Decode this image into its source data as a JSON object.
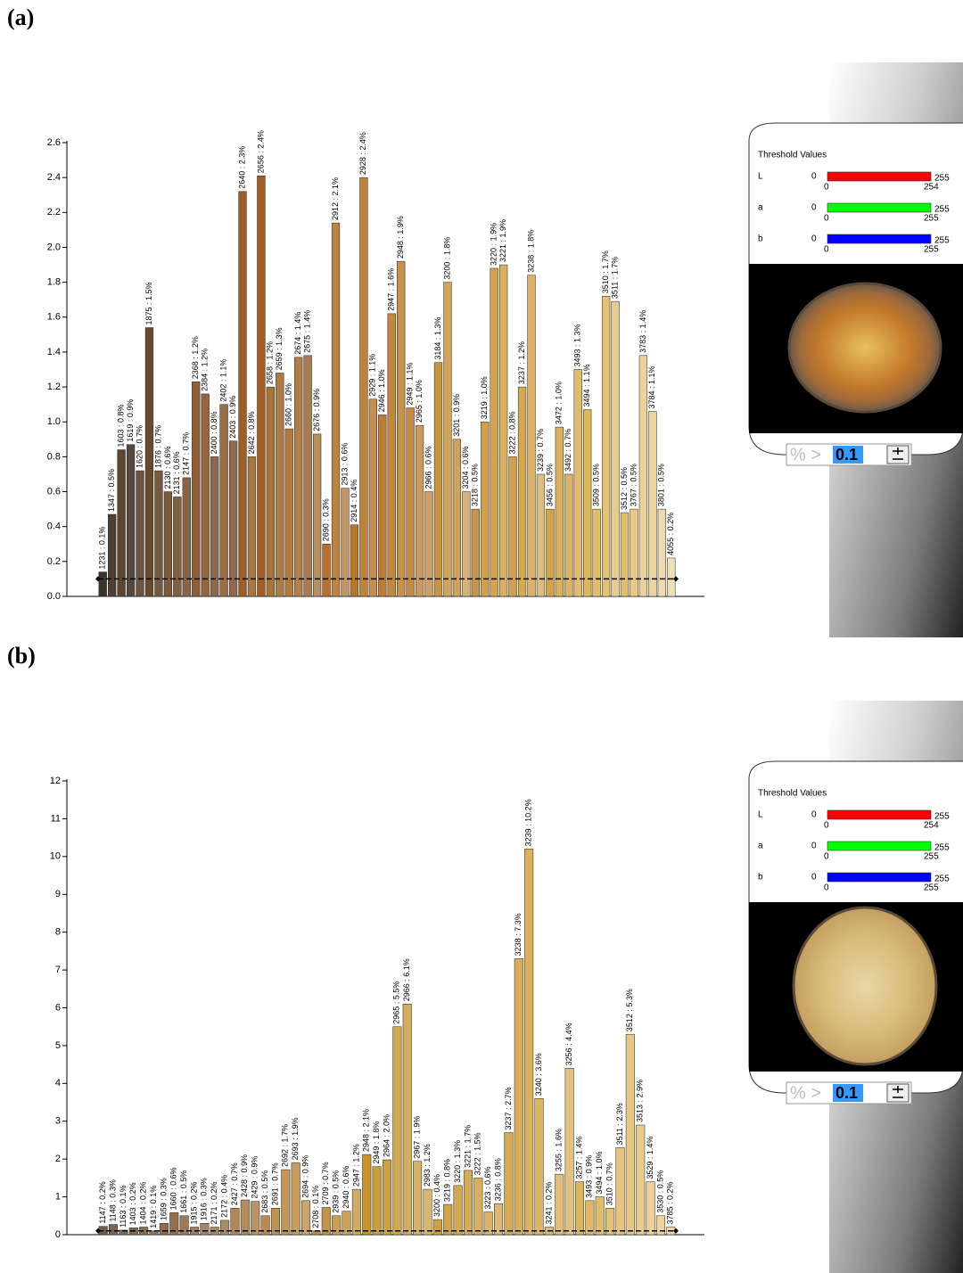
{
  "panels": [
    {
      "label": "(a)",
      "threshold_title": "Threshold Values",
      "channels": [
        {
          "name": "L",
          "low": 0,
          "high": 255,
          "min": 0,
          "max": 254,
          "color": "#ff0000"
        },
        {
          "name": "a",
          "low": 0,
          "high": 255,
          "min": 0,
          "max": 255,
          "color": "#00ff00"
        },
        {
          "name": "b",
          "low": 0,
          "high": 255,
          "min": 0,
          "max": 255,
          "color": "#0000ff"
        }
      ],
      "filter_prefix": "% >",
      "filter_value": 0.1
    },
    {
      "label": "(b)",
      "threshold_title": "Threshold Values",
      "channels": [
        {
          "name": "L",
          "low": 0,
          "high": 255,
          "min": 0,
          "max": 254,
          "color": "#ff0000"
        },
        {
          "name": "a",
          "low": 0,
          "high": 255,
          "min": 0,
          "max": 255,
          "color": "#00ff00"
        },
        {
          "name": "b",
          "low": 0,
          "high": 255,
          "min": 0,
          "max": 255,
          "color": "#0000ff"
        }
      ],
      "filter_prefix": "% >",
      "filter_value": 0.1
    }
  ],
  "chart_data": [
    {
      "type": "bar",
      "ylim": [
        0,
        2.6
      ],
      "yticks": [
        {
          "value": 0,
          "label": "0.0"
        },
        0.2,
        0.4,
        0.6,
        0.8,
        {
          "value": 1,
          "label": "1.0"
        },
        1.2,
        1.4,
        1.6,
        1.8,
        {
          "value": 2,
          "label": "2.0"
        },
        2.2,
        2.4,
        2.6
      ],
      "values": [
        0.14,
        0.47,
        0.84,
        0.87,
        0.72,
        1.54,
        0.72,
        0.6,
        0.57,
        0.68,
        1.23,
        1.16,
        0.8,
        1.1,
        0.89,
        2.32,
        0.8,
        2.41,
        1.2,
        1.28,
        0.96,
        1.37,
        1.38,
        0.93,
        0.3,
        2.14,
        0.62,
        0.41,
        2.4,
        1.13,
        1.04,
        1.62,
        1.92,
        1.08,
        0.98,
        0.6,
        1.34,
        1.8,
        0.9,
        0.6,
        0.5,
        1.0,
        1.88,
        1.9,
        0.8,
        1.2,
        1.84,
        0.7,
        0.5,
        0.97,
        0.7,
        1.3,
        1.07,
        0.5,
        1.72,
        1.69,
        0.48,
        0.5,
        1.38,
        1.06,
        0.5,
        0.22
      ],
      "value_labels": [
        "1231 : 0.1%",
        "1347 : 0.5%",
        "1603 : 0.8%",
        "1619 : 0.9%",
        "1620 : 0.7%",
        "1875 : 1.5%",
        "1876 : 0.7%",
        "2130 : 0.6%",
        "2131 : 0.6%",
        "2147 : 0.7%",
        "2368 : 1.2%",
        "2384 : 1.2%",
        "2400 : 0.8%",
        "2402 : 1.1%",
        "2403 : 0.9%",
        "2640 : 2.3%",
        "2642 : 0.8%",
        "2656 : 2.4%",
        "2658 : 1.2%",
        "2659 : 1.3%",
        "2660 : 1.0%",
        "2674 : 1.4%",
        "2675 : 1.4%",
        "2676 : 0.9%",
        "2690 : 0.3%",
        "2912 : 2.1%",
        "2913 : 0.6%",
        "2914 : 0.4%",
        "2928 : 2.4%",
        "2929 : 1.1%",
        "2946 : 1.0%",
        "2947 : 1.6%",
        "2948 : 1.9%",
        "2949 : 1.1%",
        "2965 : 1.0%",
        "2966 : 0.6%",
        "3184 : 1.3%",
        "3200 : 1.8%",
        "3201 : 0.9%",
        "3204 : 0.6%",
        "3218 : 0.5%",
        "3219 : 1.0%",
        "3220 : 1.9%",
        "3221 : 1.9%",
        "3222 : 0.8%",
        "3237 : 1.2%",
        "3238 : 1.8%",
        "3239 : 0.7%",
        "3456 : 0.5%",
        "3472 : 1.0%",
        "3492 : 0.7%",
        "3493 : 1.3%",
        "3494 : 1.1%",
        "3509 : 0.5%",
        "3510 : 1.7%",
        "3511 : 1.7%",
        "3512 : 0.5%",
        "3767 : 0.5%",
        "3783 : 1.4%",
        "3784 : 1.1%",
        "3801 : 0.5%",
        "4055 : 0.2%"
      ],
      "colors": [
        "#3d3429",
        "#4f3f30",
        "#5c4632",
        "#54473b",
        "#6a5443",
        "#6b4a2c",
        "#765a40",
        "#7a5a3a",
        "#80603f",
        "#8a6444",
        "#8e5e36",
        "#94653e",
        "#8a6a4a",
        "#9a6e45",
        "#8f6a4c",
        "#9c5f28",
        "#a6773f",
        "#a35d24",
        "#a8743a",
        "#ad7b43",
        "#b07a3c",
        "#b27f48",
        "#a97b52",
        "#b69060",
        "#b8702a",
        "#bb8240",
        "#c09664",
        "#b97528",
        "#c08238",
        "#c48e52",
        "#bf7c30",
        "#c4883c",
        "#c79248",
        "#c38a46",
        "#c89a5c",
        "#cd9f66",
        "#c8963c",
        "#d1a458",
        "#cfa260",
        "#d5b07a",
        "#c89447",
        "#d0a04c",
        "#d2a550",
        "#d8b062",
        "#cfa04e",
        "#d6a94e",
        "#dab368",
        "#dcbd80",
        "#d4a246",
        "#dbb15e",
        "#dcb468",
        "#e0bb72",
        "#ddb85a",
        "#e2bf66",
        "#e3c274",
        "#e6cc90",
        "#e0c070",
        "#e8ca84",
        "#ebd298",
        "#ead4a0",
        "#eddab0",
        "#f0e0b8"
      ]
    },
    {
      "type": "bar",
      "ylim": [
        0,
        12
      ],
      "yticks": [
        0,
        1,
        2,
        3,
        4,
        5,
        6,
        7,
        8,
        9,
        10,
        11,
        12
      ],
      "values": [
        0.22,
        0.27,
        0.12,
        0.18,
        0.2,
        0.1,
        0.3,
        0.58,
        0.5,
        0.2,
        0.3,
        0.2,
        0.38,
        0.7,
        0.92,
        0.88,
        0.5,
        0.7,
        1.72,
        1.9,
        0.9,
        0.1,
        0.72,
        0.5,
        0.62,
        1.2,
        2.12,
        1.8,
        1.98,
        5.5,
        6.1,
        1.94,
        1.2,
        0.4,
        0.8,
        1.3,
        1.7,
        1.5,
        0.6,
        0.82,
        2.7,
        7.3,
        10.2,
        3.6,
        0.2,
        1.6,
        4.4,
        1.4,
        0.9,
        1.0,
        0.7,
        2.3,
        5.3,
        2.9,
        1.4,
        0.5,
        0.2
      ],
      "value_labels": [
        "1147 : 0.2%",
        "1148 : 0.3%",
        "1163 : 0.1%",
        "1403 : 0.2%",
        "1404 : 0.2%",
        "1419 : 0.1%",
        "1659 : 0.3%",
        "1660 : 0.6%",
        "1661 : 0.5%",
        "1915 : 0.2%",
        "1916 : 0.3%",
        "2171 : 0.2%",
        "2172 : 0.4%",
        "2427 : 0.7%",
        "2428 : 0.9%",
        "2429 : 0.9%",
        "2683 : 0.5%",
        "2691 : 0.7%",
        "2692 : 1.7%",
        "2693 : 1.9%",
        "2694 : 0.9%",
        "2708 : 0.1%",
        "2709 : 0.7%",
        "2939 : 0.5%",
        "2940 : 0.6%",
        "2947 : 1.2%",
        "2948 : 2.1%",
        "2949 : 1.8%",
        "2964 : 2.0%",
        "2965 : 5.5%",
        "2966 : 6.1%",
        "2967 : 1.9%",
        "2983 : 1.2%",
        "3200 : 0.4%",
        "3219 : 0.8%",
        "3220 : 1.3%",
        "3221 : 1.7%",
        "3222 : 1.5%",
        "3223 : 0.6%",
        "3236 : 0.8%",
        "3237 : 2.7%",
        "3238 : 7.3%",
        "3239 : 10.2%",
        "3240 : 3.6%",
        "3241 : 0.2%",
        "3255 : 1.6%",
        "3256 : 4.4%",
        "3257 : 1.4%",
        "3493 : 0.9%",
        "3494 : 1.0%",
        "3510 : 0.7%",
        "3511 : 2.3%",
        "3512 : 5.3%",
        "3513 : 2.9%",
        "3529 : 1.4%",
        "3530 : 0.5%",
        "3785 : 0.2%"
      ],
      "colors": [
        "#6e5a48",
        "#7a6450",
        "#7d6a58",
        "#806650",
        "#86705c",
        "#8a7664",
        "#8e6c4c",
        "#94704e",
        "#9a7a5a",
        "#9e7e60",
        "#a4866a",
        "#a88a60",
        "#ac8c68",
        "#b08856",
        "#b48c5a",
        "#b89468",
        "#bc8a4c",
        "#bf9250",
        "#c29658",
        "#c69c60",
        "#c9a46c",
        "#c08a3e",
        "#c49446",
        "#c8a050",
        "#cba458",
        "#cfaa62",
        "#c9962e",
        "#ca9c3a",
        "#cda244",
        "#d0a850",
        "#d4ae5c",
        "#d6b266",
        "#d8b670",
        "#d0a040",
        "#d2a448",
        "#d4a850",
        "#d6ac58",
        "#d8b060",
        "#dab468",
        "#dcb870",
        "#d6aa50",
        "#d8ae58",
        "#dab260",
        "#dcb668",
        "#dfba70",
        "#e0be78",
        "#e2c280",
        "#dcb45c",
        "#dfb864",
        "#e2bc6c",
        "#e4c074",
        "#e6c47c",
        "#e8c884",
        "#eacc8c",
        "#ecd094",
        "#eed49c",
        "#f0d8a4"
      ]
    }
  ]
}
